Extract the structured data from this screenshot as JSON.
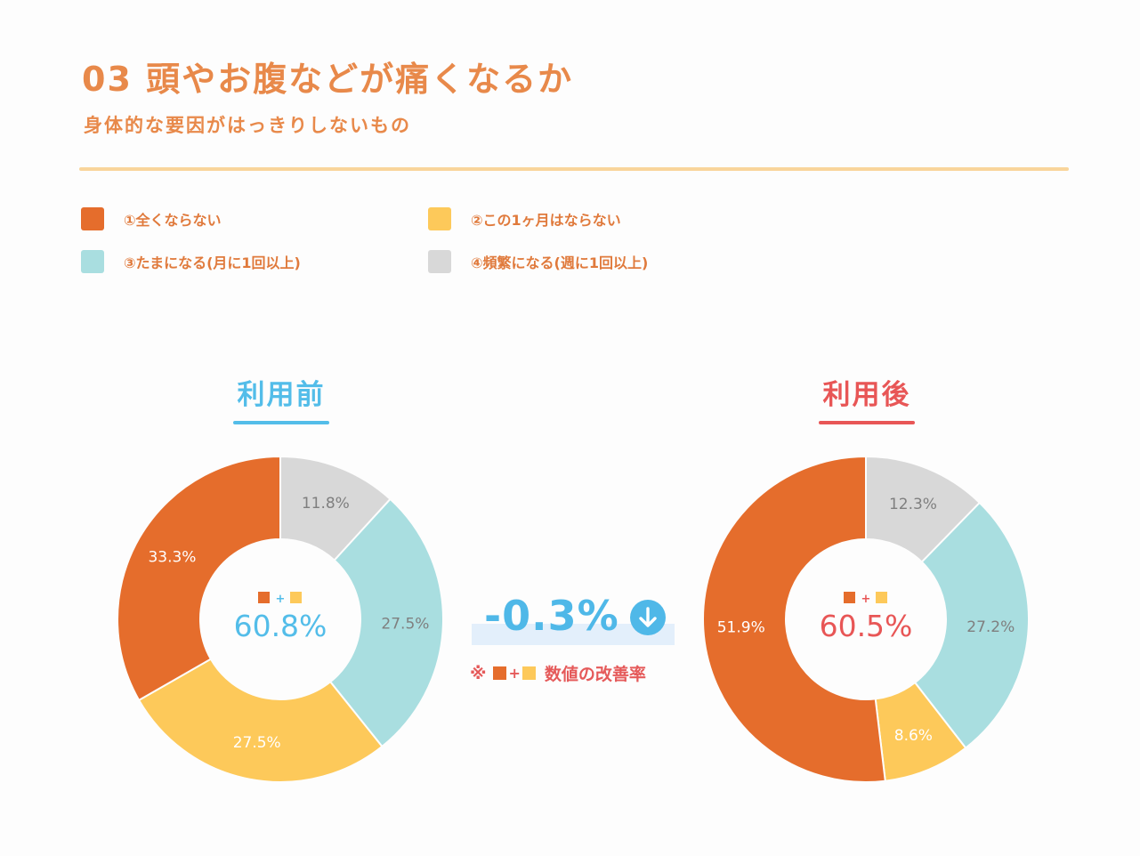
{
  "header": {
    "title": "03 頭やお腹などが痛くなるか",
    "subtitle": "身体的な要因がはっきりしないもの"
  },
  "legend": [
    {
      "label": "①全くならない",
      "color": "#e56d2c"
    },
    {
      "label": "②この1ヶ月はならない",
      "color": "#fdc95a"
    },
    {
      "label": "③たまになる(月に1回以上)",
      "color": "#a9dee0"
    },
    {
      "label": "④頻繁になる(週に1回以上)",
      "color": "#d8d8d8"
    }
  ],
  "colors": {
    "before_accent": "#53bde9",
    "after_accent": "#e85656"
  },
  "chart_data": [
    {
      "type": "pie",
      "title": "利用前",
      "categories": [
        "①全くならない",
        "②この1ヶ月はならない",
        "③たまになる(月に1回以上)",
        "④頻繁になる(週に1回以上)"
      ],
      "values": [
        33.3,
        27.5,
        27.5,
        11.8
      ],
      "labels": [
        "33.3%",
        "27.5%",
        "27.5%",
        "11.8%"
      ],
      "center_value": "60.8%"
    },
    {
      "type": "pie",
      "title": "利用後",
      "categories": [
        "①全くならない",
        "②この1ヶ月はならない",
        "③たまになる(月に1回以上)",
        "④頻繁になる(週に1回以上)"
      ],
      "values": [
        51.9,
        8.6,
        27.2,
        12.3
      ],
      "labels": [
        "51.9%",
        "8.6%",
        "27.2%",
        "12.3%"
      ],
      "center_value": "60.5%"
    }
  ],
  "comparison": {
    "value": "-0.3%",
    "arrow_icon": "arrow-down-circle-icon",
    "note_prefix": "※",
    "note_plus": "+",
    "note_text": "数値の改善率",
    "center_plus": "+"
  }
}
